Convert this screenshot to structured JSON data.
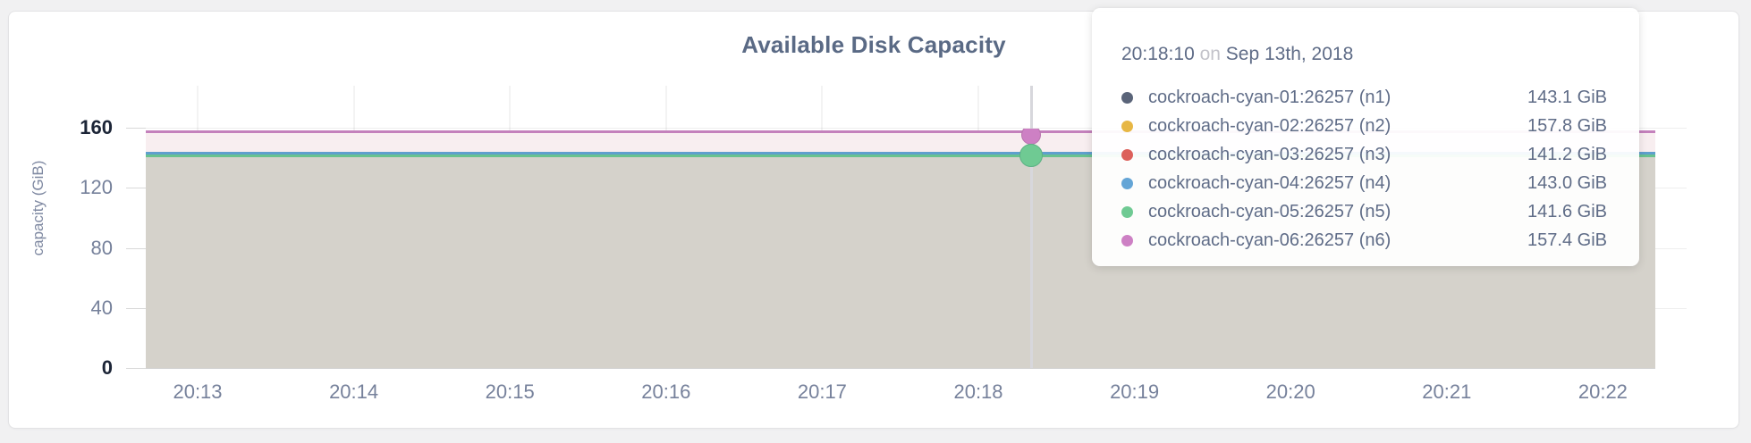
{
  "page": {
    "background": "#f1f1f2",
    "accent_text": "#5a6a85"
  },
  "chart": {
    "title": "Available Disk Capacity",
    "y_axis_label": "capacity (GiB)",
    "y_ticks": [
      {
        "label": "0",
        "value": 0,
        "emphasis": true
      },
      {
        "label": "40",
        "value": 40,
        "emphasis": false
      },
      {
        "label": "80",
        "value": 80,
        "emphasis": false
      },
      {
        "label": "120",
        "value": 120,
        "emphasis": false
      },
      {
        "label": "160",
        "value": 160,
        "emphasis": true
      }
    ],
    "x_ticks": [
      "20:13",
      "20:14",
      "20:15",
      "20:16",
      "20:17",
      "20:18",
      "20:19",
      "20:20",
      "20:21",
      "20:22"
    ]
  },
  "tooltip": {
    "time": "20:18:10",
    "separator": "on",
    "date": "Sep 13th, 2018",
    "rows": [
      {
        "name": "cockroach-cyan-01:26257 (n1)",
        "value": "143.1 GiB",
        "color": "#5a6479"
      },
      {
        "name": "cockroach-cyan-02:26257 (n2)",
        "value": "157.8 GiB",
        "color": "#e7b744"
      },
      {
        "name": "cockroach-cyan-03:26257 (n3)",
        "value": "141.2 GiB",
        "color": "#dc605b"
      },
      {
        "name": "cockroach-cyan-04:26257 (n4)",
        "value": "143.0 GiB",
        "color": "#64a5d6"
      },
      {
        "name": "cockroach-cyan-05:26257 (n5)",
        "value": "141.6 GiB",
        "color": "#6fca93"
      },
      {
        "name": "cockroach-cyan-06:26257 (n6)",
        "value": "157.4 GiB",
        "color": "#cd80c4"
      }
    ]
  },
  "chart_data": {
    "type": "area",
    "title": "Available Disk Capacity",
    "ylabel": "capacity (GiB)",
    "ylim": [
      0,
      160
    ],
    "x": [
      "20:13",
      "20:14",
      "20:15",
      "20:16",
      "20:17",
      "20:18",
      "20:19",
      "20:20",
      "20:21",
      "20:22"
    ],
    "x_range_shown": [
      "20:12:40",
      "20:22:20"
    ],
    "grid": true,
    "legend_position": "tooltip-only",
    "hover_time": "20:18:10 on Sep 13th, 2018",
    "series": [
      {
        "name": "cockroach-cyan-01:26257 (n1)",
        "constant_value_gib": 143.1,
        "color": "#5a6479",
        "line_color": "#5a6479"
      },
      {
        "name": "cockroach-cyan-02:26257 (n2)",
        "constant_value_gib": 157.8,
        "color": "#e7b744",
        "line_color": "#dfba63"
      },
      {
        "name": "cockroach-cyan-03:26257 (n3)",
        "constant_value_gib": 141.2,
        "color": "#dc605b",
        "line_color": "#c4827a"
      },
      {
        "name": "cockroach-cyan-04:26257 (n4)",
        "constant_value_gib": 143.0,
        "color": "#64a5d6",
        "line_color": "#5f9fcd"
      },
      {
        "name": "cockroach-cyan-05:26257 (n5)",
        "constant_value_gib": 141.6,
        "color": "#6fca93",
        "line_color": "#68c28f"
      },
      {
        "name": "cockroach-cyan-06:26257 (n6)",
        "constant_value_gib": 157.4,
        "color": "#cd80c4",
        "line_color": "#c481bc"
      }
    ],
    "fills": {
      "between_157_and_143": "#f8eef0",
      "below_141": "#d5d2cb"
    },
    "hover_points": [
      {
        "series": "cockroach-cyan-06:26257 (n6)",
        "shape": "clipped-circle"
      },
      {
        "series": "cockroach-cyan-05:26257 (n5)",
        "shape": "circle"
      }
    ]
  }
}
